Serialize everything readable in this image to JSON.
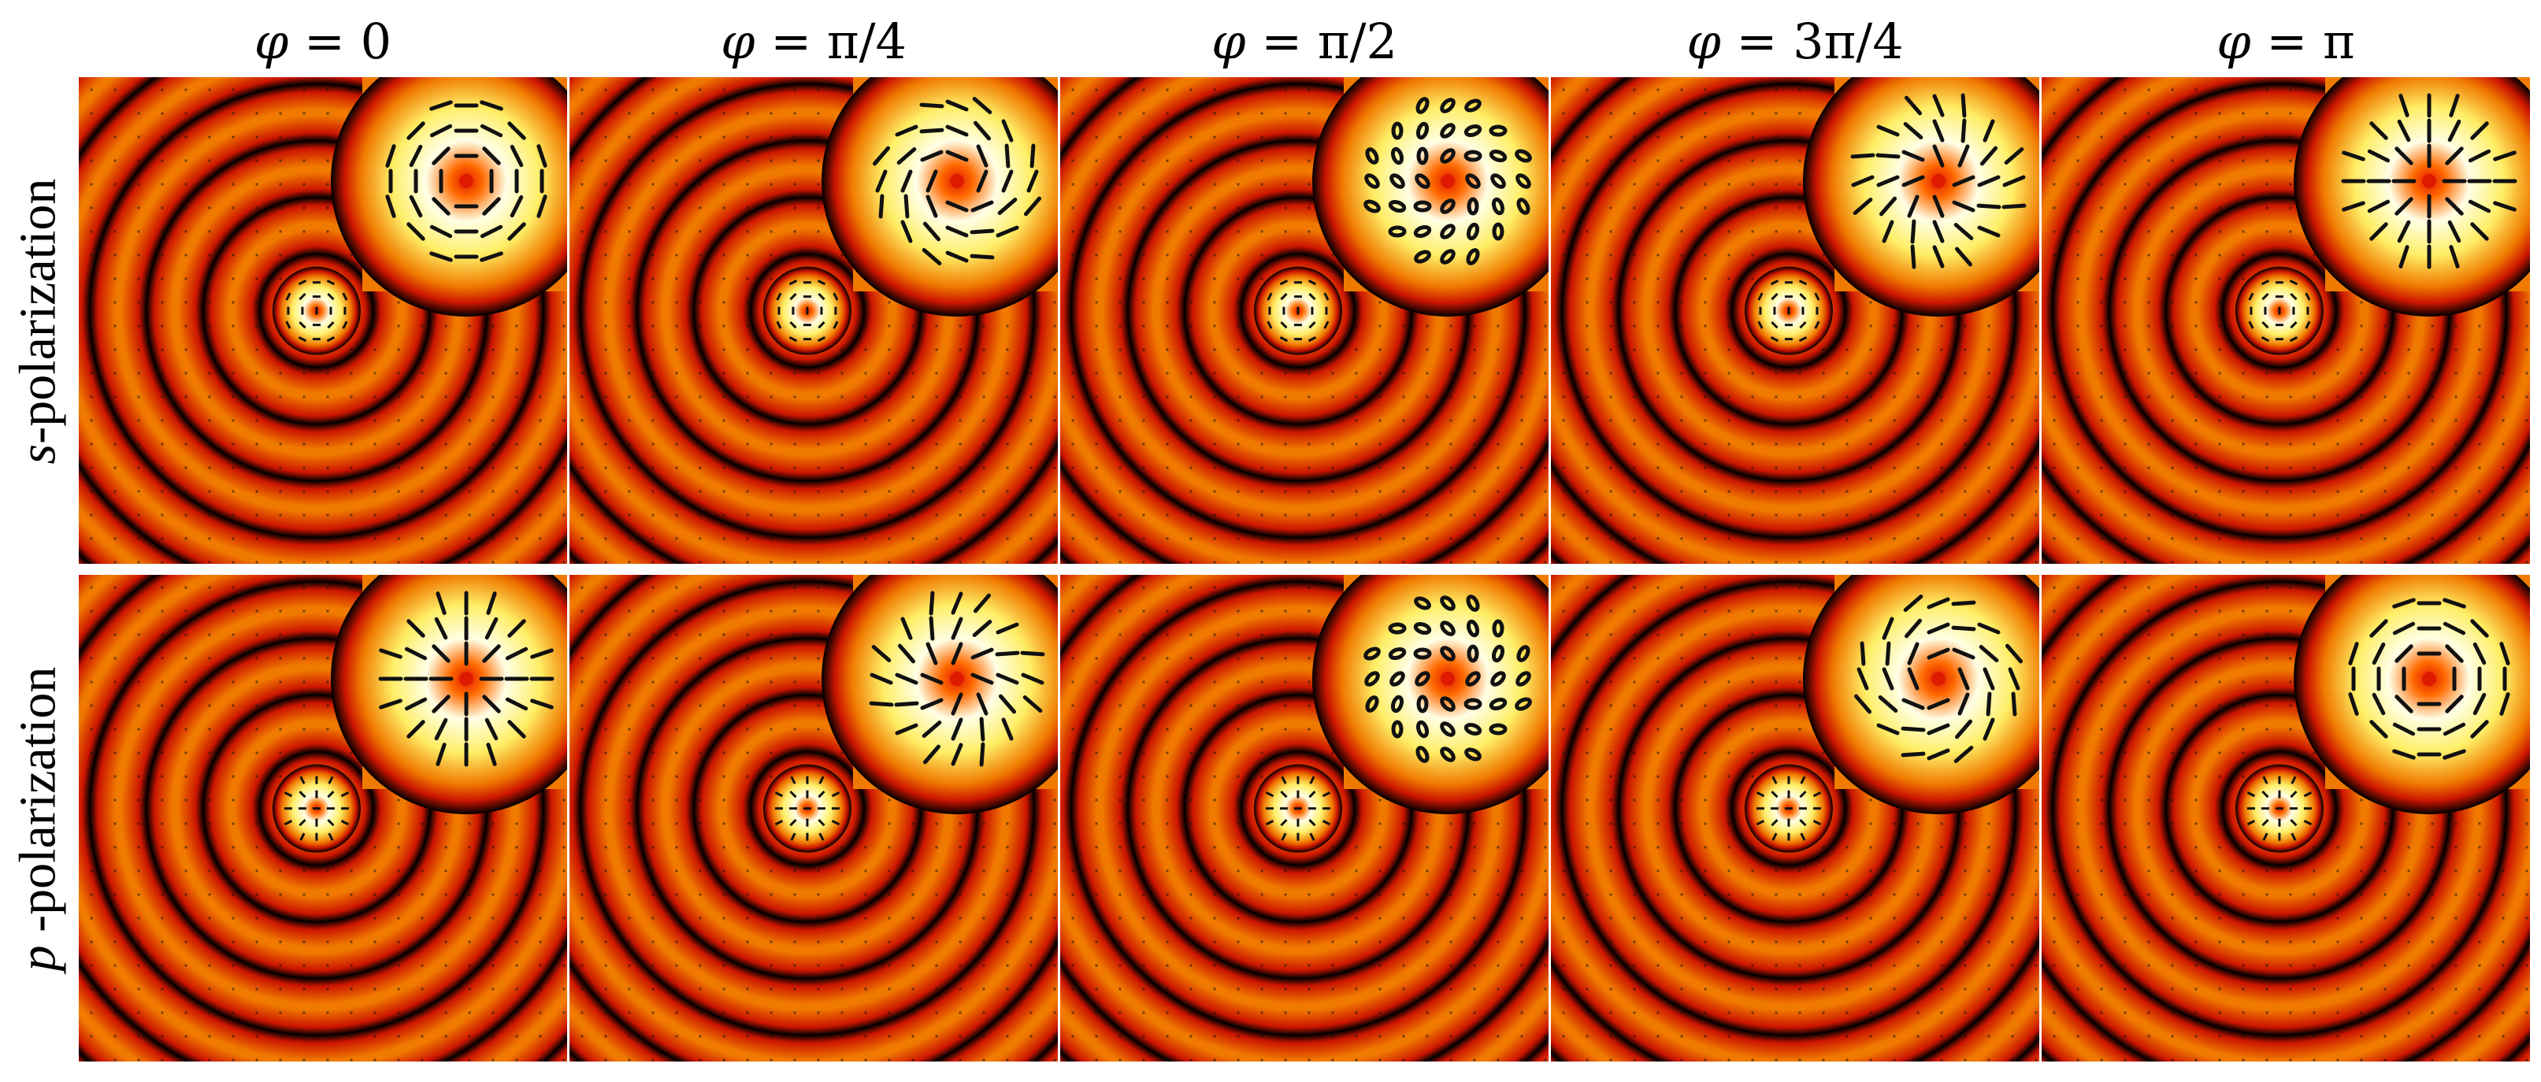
{
  "column_headers": [
    {
      "symbol": "φ",
      "value": " = 0"
    },
    {
      "symbol": "φ",
      "value": " = π/4"
    },
    {
      "symbol": "φ",
      "value": " = π/2"
    },
    {
      "symbol": "φ",
      "value": " = 3π/4"
    },
    {
      "symbol": "φ",
      "value": " = π"
    }
  ],
  "row_labels": [
    {
      "letter": "s",
      "text": "-polarization"
    },
    {
      "letter": "p",
      "text": " -polarization"
    }
  ],
  "colors": {
    "ring_dark": "#000000",
    "ring_red": "#cc1500",
    "ring_orange": "#f07a00",
    "center_yellow": "#ffee66",
    "center_white": "#ffffe6",
    "vector_mark": "#111111"
  }
}
